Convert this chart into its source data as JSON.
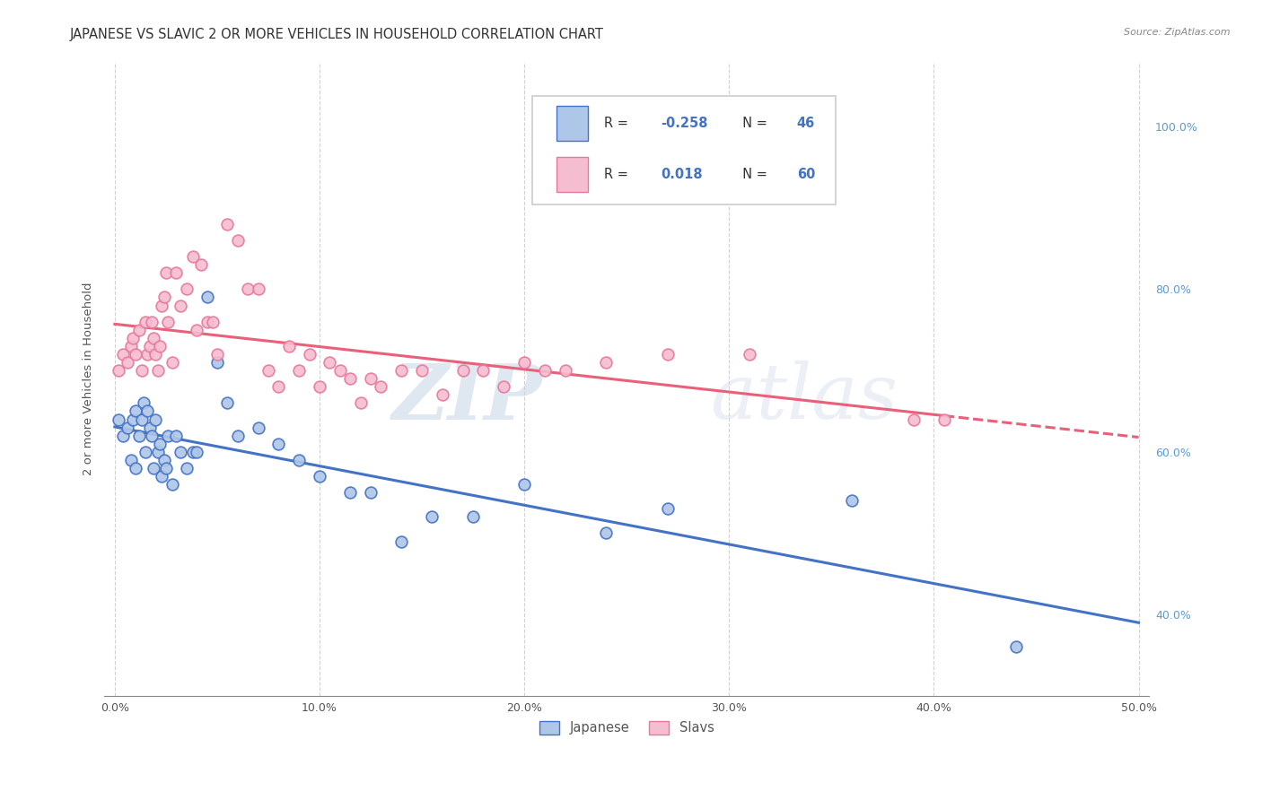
{
  "title": "JAPANESE VS SLAVIC 2 OR MORE VEHICLES IN HOUSEHOLD CORRELATION CHART",
  "source": "Source: ZipAtlas.com",
  "ylabel": "2 or more Vehicles in Household",
  "x_ticks": [
    "0.0%",
    "10.0%",
    "20.0%",
    "30.0%",
    "40.0%",
    "50.0%"
  ],
  "x_tick_vals": [
    0.0,
    0.1,
    0.2,
    0.3,
    0.4,
    0.5
  ],
  "y_ticks_right": [
    "40.0%",
    "60.0%",
    "80.0%",
    "100.0%"
  ],
  "y_tick_vals_right": [
    0.4,
    0.6,
    0.8,
    1.0
  ],
  "xlim": [
    -0.005,
    0.505
  ],
  "ylim": [
    0.3,
    1.08
  ],
  "watermark_zip": "ZIP",
  "watermark_atlas": "atlas",
  "legend_text1": "R = -0.258   N = 46",
  "legend_text2": "R =   0.018   N = 60",
  "japanese_color": "#aec6e8",
  "slavic_color": "#f5bdd0",
  "japanese_edge_color": "#4472c4",
  "slavic_edge_color": "#e87899",
  "japanese_line_color": "#4472c4",
  "slavic_line_color": "#e8607a",
  "background_color": "#ffffff",
  "japanese_x": [
    0.002,
    0.004,
    0.006,
    0.008,
    0.009,
    0.01,
    0.01,
    0.012,
    0.013,
    0.014,
    0.015,
    0.016,
    0.017,
    0.018,
    0.019,
    0.02,
    0.021,
    0.022,
    0.023,
    0.024,
    0.025,
    0.026,
    0.028,
    0.03,
    0.032,
    0.035,
    0.038,
    0.04,
    0.045,
    0.05,
    0.055,
    0.06,
    0.07,
    0.08,
    0.09,
    0.1,
    0.115,
    0.125,
    0.14,
    0.155,
    0.175,
    0.2,
    0.24,
    0.27,
    0.36,
    0.44
  ],
  "japanese_y": [
    0.64,
    0.62,
    0.63,
    0.59,
    0.64,
    0.58,
    0.65,
    0.62,
    0.64,
    0.66,
    0.6,
    0.65,
    0.63,
    0.62,
    0.58,
    0.64,
    0.6,
    0.61,
    0.57,
    0.59,
    0.58,
    0.62,
    0.56,
    0.62,
    0.6,
    0.58,
    0.6,
    0.6,
    0.79,
    0.71,
    0.66,
    0.62,
    0.63,
    0.61,
    0.59,
    0.57,
    0.55,
    0.55,
    0.49,
    0.52,
    0.52,
    0.56,
    0.5,
    0.53,
    0.54,
    0.36
  ],
  "slavic_x": [
    0.002,
    0.004,
    0.006,
    0.008,
    0.009,
    0.01,
    0.012,
    0.013,
    0.015,
    0.016,
    0.017,
    0.018,
    0.019,
    0.02,
    0.021,
    0.022,
    0.023,
    0.024,
    0.025,
    0.026,
    0.028,
    0.03,
    0.032,
    0.035,
    0.038,
    0.04,
    0.042,
    0.045,
    0.048,
    0.05,
    0.055,
    0.06,
    0.065,
    0.07,
    0.075,
    0.08,
    0.085,
    0.09,
    0.095,
    0.1,
    0.105,
    0.11,
    0.115,
    0.12,
    0.125,
    0.13,
    0.14,
    0.15,
    0.16,
    0.17,
    0.18,
    0.19,
    0.2,
    0.21,
    0.22,
    0.24,
    0.27,
    0.31,
    0.39,
    0.405
  ],
  "slavic_y": [
    0.7,
    0.72,
    0.71,
    0.73,
    0.74,
    0.72,
    0.75,
    0.7,
    0.76,
    0.72,
    0.73,
    0.76,
    0.74,
    0.72,
    0.7,
    0.73,
    0.78,
    0.79,
    0.82,
    0.76,
    0.71,
    0.82,
    0.78,
    0.8,
    0.84,
    0.75,
    0.83,
    0.76,
    0.76,
    0.72,
    0.88,
    0.86,
    0.8,
    0.8,
    0.7,
    0.68,
    0.73,
    0.7,
    0.72,
    0.68,
    0.71,
    0.7,
    0.69,
    0.66,
    0.69,
    0.68,
    0.7,
    0.7,
    0.67,
    0.7,
    0.7,
    0.68,
    0.71,
    0.7,
    0.7,
    0.71,
    0.72,
    0.72,
    0.64,
    0.64
  ],
  "title_fontsize": 10.5,
  "axis_label_fontsize": 9.5,
  "tick_fontsize": 9,
  "marker_size": 85
}
